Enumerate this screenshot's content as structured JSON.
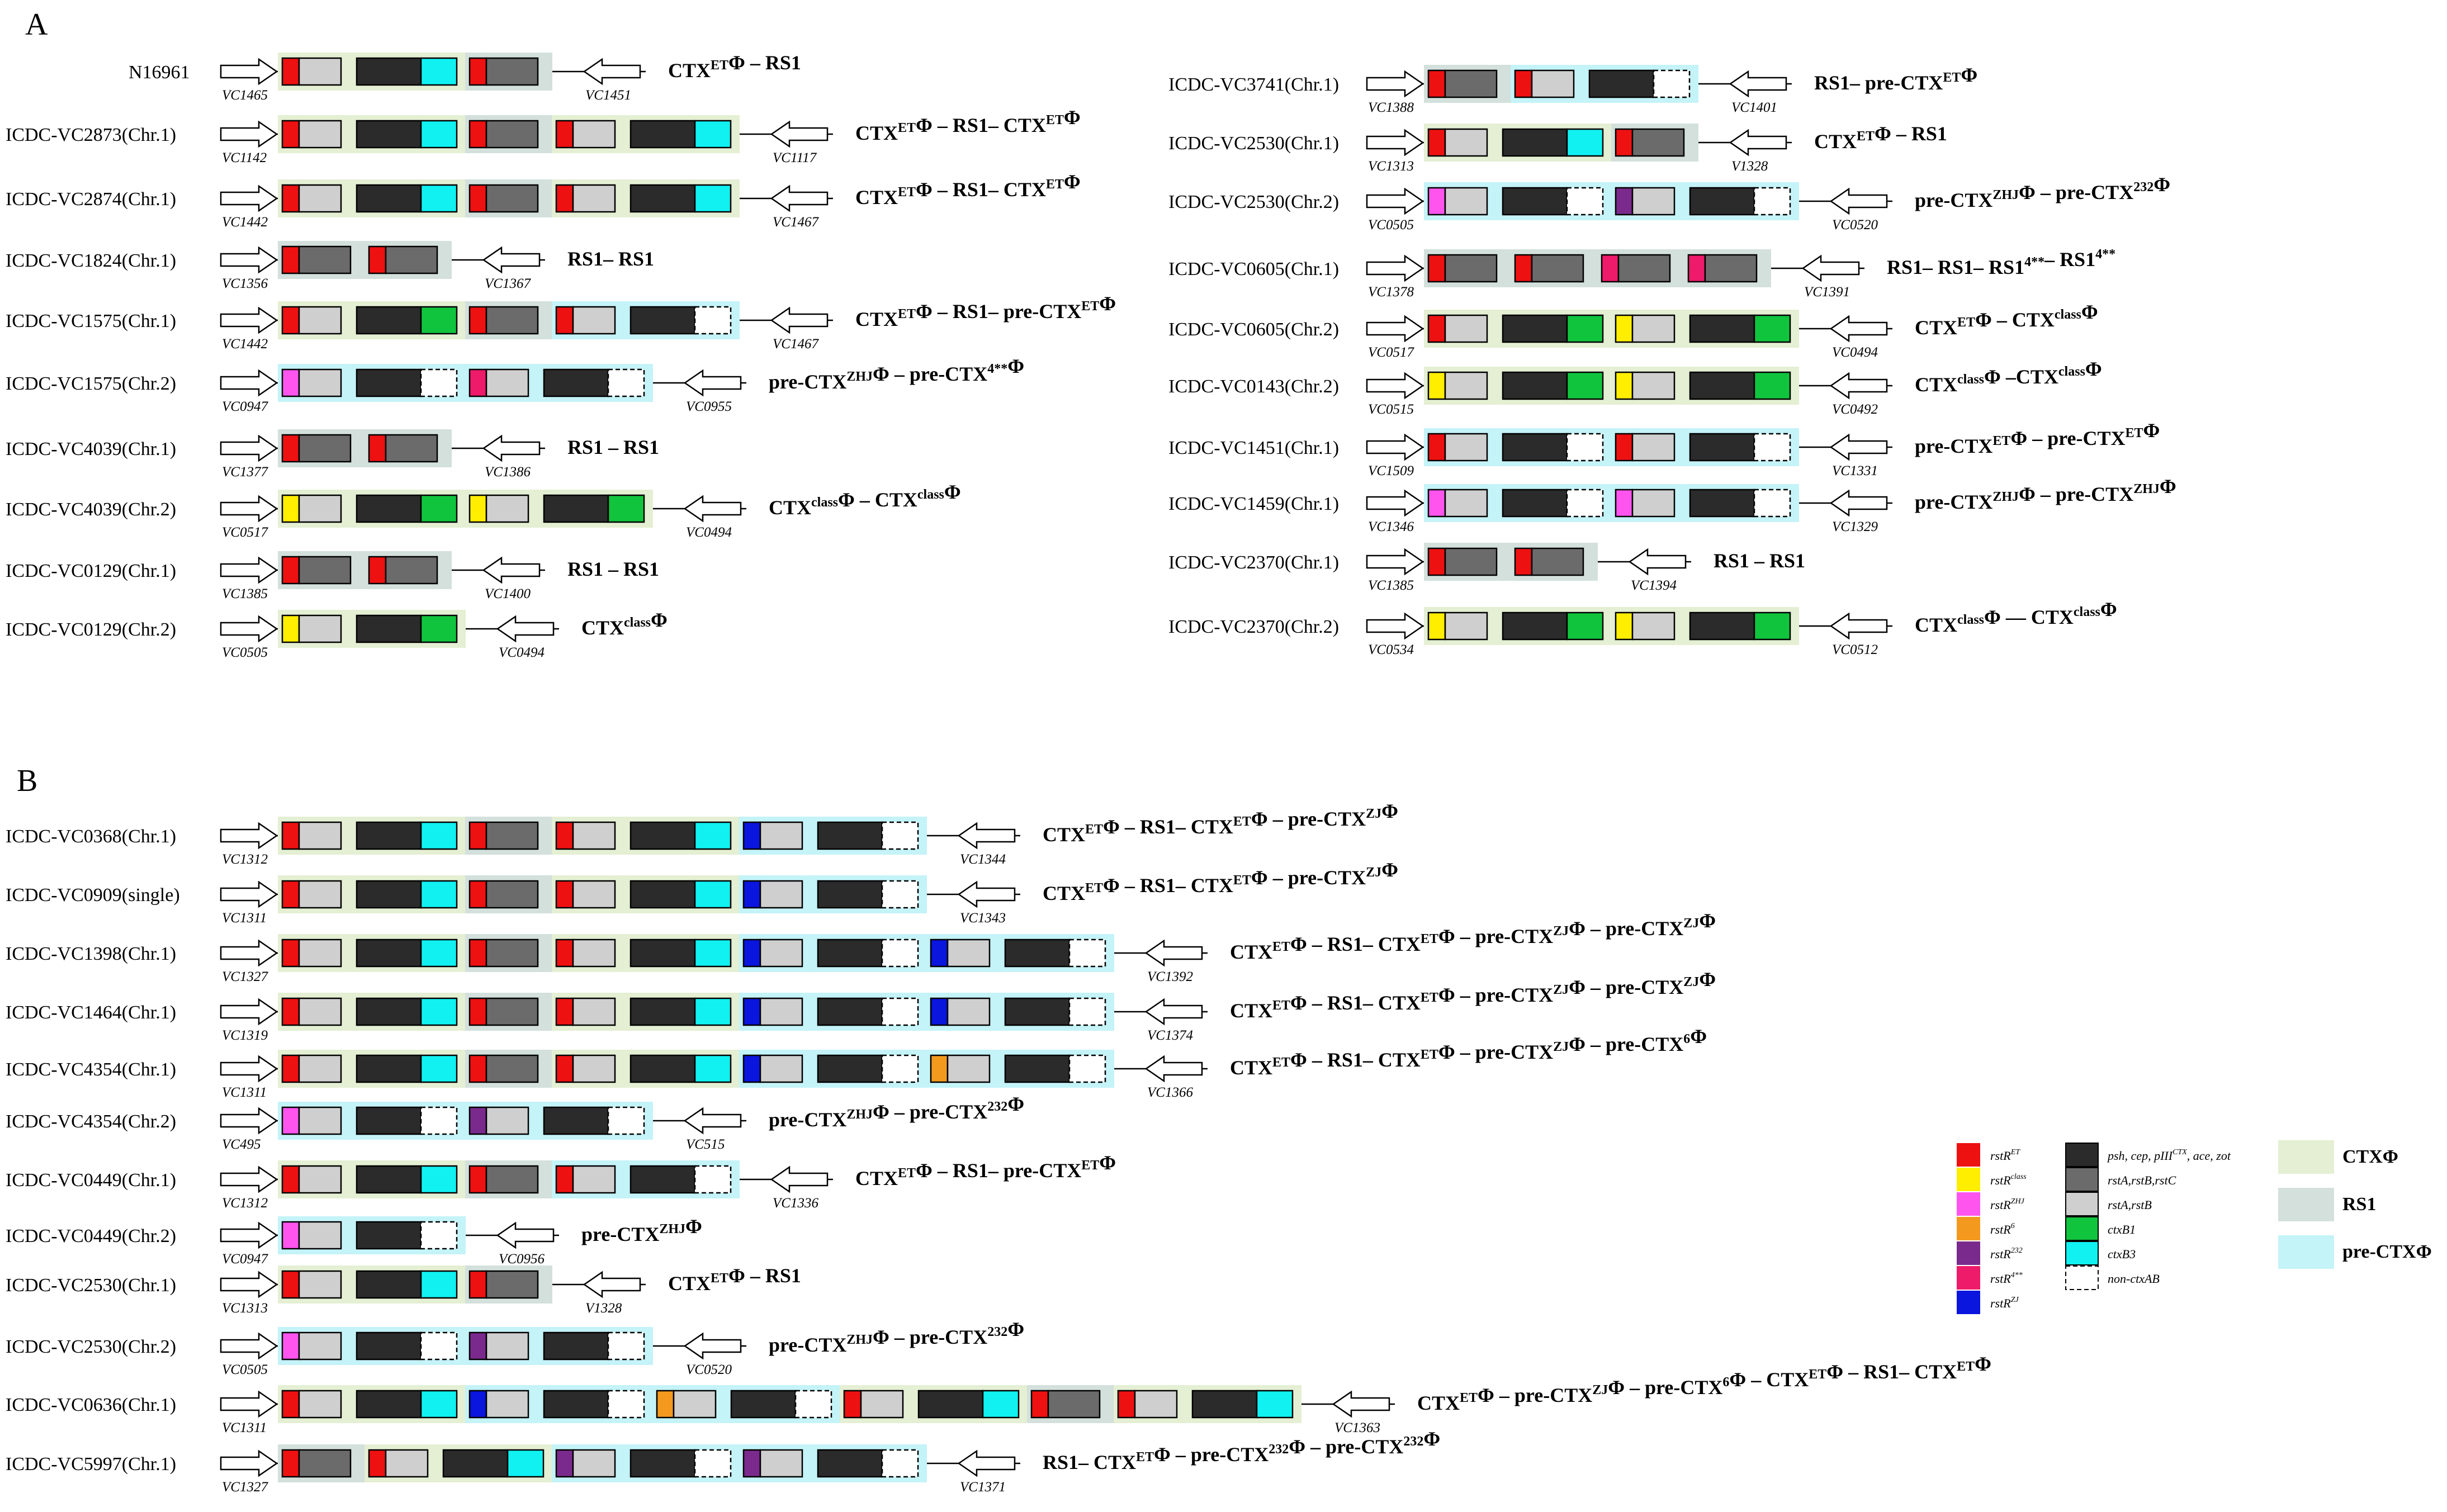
{
  "panels": [
    {
      "letter": "A",
      "rows": [
        {
          "strain": "N16961",
          "left": "VC1465",
          "right": "VC1451",
          "units": [
            "ET:EG:RS"
          ],
          "formula": [
            [
              "CTX",
              ""
            ],
            [
              "ET",
              "sup"
            ],
            [
              "Φ – RS1",
              ""
            ]
          ]
        },
        {
          "strain": "ICDC-VC2873(Chr.1)",
          "left": "VC1142",
          "right": "VC1117",
          "formula": [
            [
              "CTX",
              ""
            ],
            [
              "ET",
              "sup"
            ],
            [
              "Φ – RS1– CTX",
              ""
            ],
            [
              "ET",
              "sup"
            ],
            [
              "Φ",
              ""
            ]
          ]
        },
        {
          "strain": "ICDC-VC2874(Chr.1)",
          "left": "VC1442",
          "right": "VC1467",
          "formula": [
            [
              "CTX",
              ""
            ],
            [
              "ET",
              "sup"
            ],
            [
              "Φ – RS1– CTX",
              ""
            ],
            [
              "ET",
              "sup"
            ],
            [
              "Φ",
              ""
            ]
          ]
        },
        {
          "strain": "ICDC-VC1824(Chr.1)",
          "left": "VC1356",
          "right": "VC1367",
          "formula": [
            [
              "RS1– RS1",
              ""
            ]
          ]
        },
        {
          "strain": "ICDC-VC1575(Chr.1)",
          "left": "VC1442",
          "right": "VC1467",
          "formula": [
            [
              "CTX",
              ""
            ],
            [
              "ET",
              "sup"
            ],
            [
              "Φ – RS1– pre-CTX",
              ""
            ],
            [
              "ET",
              "sup"
            ],
            [
              "Φ",
              ""
            ]
          ]
        },
        {
          "strain": "ICDC-VC1575(Chr.2)",
          "left": "VC0947",
          "right": "VC0955",
          "formula": [
            [
              "pre-CTX",
              ""
            ],
            [
              "ZHJ",
              "sup"
            ],
            [
              "Φ – pre-CTX",
              ""
            ],
            [
              "4**",
              "sup"
            ],
            [
              "Φ",
              ""
            ]
          ]
        },
        {
          "strain": "ICDC-VC4039(Chr.1)",
          "left": "VC1377",
          "right": "VC1386",
          "formula": [
            [
              "RS1 – RS1",
              ""
            ]
          ]
        },
        {
          "strain": "ICDC-VC4039(Chr.2)",
          "left": "VC0517",
          "right": "VC0494",
          "formula": [
            [
              "CTX",
              ""
            ],
            [
              "class",
              "sup"
            ],
            [
              "Φ – CTX",
              ""
            ],
            [
              "class",
              "sup"
            ],
            [
              "Φ",
              ""
            ]
          ]
        },
        {
          "strain": "ICDC-VC0129(Chr.1)",
          "left": "VC1385",
          "right": "VC1400",
          "formula": [
            [
              "RS1 – RS1",
              ""
            ]
          ]
        },
        {
          "strain": "ICDC-VC0129(Chr.2)",
          "left": "VC0505",
          "right": "VC0494",
          "formula": [
            [
              "CTX",
              ""
            ],
            [
              "class",
              "sup"
            ],
            [
              "Φ",
              ""
            ]
          ]
        },
        {
          "strain": "ICDC-VC3741(Chr.1)",
          "left": "VC1388",
          "right": "VC1401",
          "formula": [
            [
              "RS1– pre-CTX",
              ""
            ],
            [
              "ET",
              "sup"
            ],
            [
              "Φ",
              ""
            ]
          ]
        },
        {
          "strain": "ICDC-VC2530(Chr.1)",
          "left": "VC1313",
          "right": "V1328",
          "formula": [
            [
              "CTX",
              ""
            ],
            [
              "ET",
              "sup"
            ],
            [
              "Φ – RS1",
              ""
            ]
          ]
        },
        {
          "strain": "ICDC-VC2530(Chr.2)",
          "left": "VC0505",
          "right": "VC0520",
          "formula": [
            [
              "pre-CTX",
              ""
            ],
            [
              "ZHJ",
              "sup"
            ],
            [
              "Φ – pre-CTX",
              ""
            ],
            [
              "232",
              "sup"
            ],
            [
              "Φ",
              ""
            ]
          ]
        },
        {
          "strain": "ICDC-VC0605(Chr.1)",
          "left": "VC1378",
          "right": "VC1391",
          "formula": [
            [
              "RS1– RS1– RS1",
              ""
            ],
            [
              "4**",
              "sup"
            ],
            [
              "– RS1",
              ""
            ],
            [
              "4**",
              "sup"
            ]
          ]
        },
        {
          "strain": "ICDC-VC0605(Chr.2)",
          "left": "VC0517",
          "right": "VC0494",
          "formula": [
            [
              "CTX",
              ""
            ],
            [
              "ET",
              "sup"
            ],
            [
              "Φ – CTX",
              ""
            ],
            [
              "class",
              "sup"
            ],
            [
              "Φ",
              ""
            ]
          ]
        },
        {
          "strain": "ICDC-VC0143(Chr.2)",
          "left": "VC0515",
          "right": "VC0492",
          "formula": [
            [
              "CTX",
              ""
            ],
            [
              "class",
              "sup"
            ],
            [
              "Φ –CTX",
              ""
            ],
            [
              "class",
              "sup"
            ],
            [
              "Φ",
              ""
            ]
          ]
        },
        {
          "strain": "ICDC-VC1451(Chr.1)",
          "left": "VC1509",
          "right": "VC1331",
          "formula": [
            [
              "pre-CTX",
              ""
            ],
            [
              "ET",
              "sup"
            ],
            [
              "Φ – pre-CTX",
              ""
            ],
            [
              "ET",
              "sup"
            ],
            [
              "Φ",
              ""
            ]
          ]
        },
        {
          "strain": "ICDC-VC1459(Chr.1)",
          "left": "VC1346",
          "right": "VC1329",
          "formula": [
            [
              "pre-CTX",
              ""
            ],
            [
              "ZHJ",
              "sup"
            ],
            [
              "Φ – pre-CTX",
              ""
            ],
            [
              "ZHJ",
              "sup"
            ],
            [
              "Φ",
              ""
            ]
          ]
        },
        {
          "strain": "ICDC-VC2370(Chr.1)",
          "left": "VC1385",
          "right": "VC1394",
          "formula": [
            [
              "RS1 – RS1",
              ""
            ]
          ]
        },
        {
          "strain": "ICDC-VC2370(Chr.2)",
          "left": "VC0534",
          "right": "VC0512",
          "formula": [
            [
              "CTX",
              ""
            ],
            [
              "class",
              "sup"
            ],
            [
              "Φ — CTX",
              ""
            ],
            [
              "class",
              "sup"
            ],
            [
              "Φ",
              ""
            ]
          ]
        }
      ]
    },
    {
      "letter": "B",
      "rows": [
        {
          "strain": "ICDC-VC0368(Chr.1)",
          "left": "VC1312",
          "right": "VC1344",
          "formula": [
            [
              "CTX",
              ""
            ],
            [
              "ET",
              "sup"
            ],
            [
              "Φ – RS1– CTX",
              ""
            ],
            [
              "ET",
              "sup"
            ],
            [
              "Φ – pre-CTX",
              ""
            ],
            [
              "ZJ",
              "sup"
            ],
            [
              "Φ",
              ""
            ]
          ]
        },
        {
          "strain": "ICDC-VC0909(single)",
          "left": "VC1311",
          "right": "VC1343",
          "formula": [
            [
              "CTX",
              ""
            ],
            [
              "ET",
              "sup"
            ],
            [
              "Φ – RS1– CTX",
              ""
            ],
            [
              "ET",
              "sup"
            ],
            [
              "Φ – pre-CTX",
              ""
            ],
            [
              "ZJ",
              "sup"
            ],
            [
              "Φ",
              ""
            ]
          ]
        },
        {
          "strain": "ICDC-VC1398(Chr.1)",
          "left": "VC1327",
          "right": "VC1392",
          "formula": [
            [
              "CTX",
              ""
            ],
            [
              "ET",
              "sup"
            ],
            [
              "Φ – RS1– CTX",
              ""
            ],
            [
              "ET",
              "sup"
            ],
            [
              "Φ – pre-CTX",
              ""
            ],
            [
              "ZJ",
              "sup"
            ],
            [
              "Φ – pre-CTX",
              ""
            ],
            [
              "ZJ",
              "sup"
            ],
            [
              "Φ",
              ""
            ]
          ]
        },
        {
          "strain": "ICDC-VC1464(Chr.1)",
          "left": "VC1319",
          "right": "VC1374",
          "formula": [
            [
              "CTX",
              ""
            ],
            [
              "ET",
              "sup"
            ],
            [
              "Φ – RS1– CTX",
              ""
            ],
            [
              "ET",
              "sup"
            ],
            [
              "Φ – pre-CTX",
              ""
            ],
            [
              "ZJ",
              "sup"
            ],
            [
              "Φ – pre-CTX",
              ""
            ],
            [
              "ZJ",
              "sup"
            ],
            [
              "Φ",
              ""
            ]
          ]
        },
        {
          "strain": "ICDC-VC4354(Chr.1)",
          "left": "VC1311",
          "right": "VC1366",
          "formula": [
            [
              "CTX",
              ""
            ],
            [
              "ET",
              "sup"
            ],
            [
              "Φ – RS1– CTX",
              ""
            ],
            [
              "ET",
              "sup"
            ],
            [
              "Φ – pre-CTX",
              ""
            ],
            [
              "ZJ",
              "sup"
            ],
            [
              "Φ – pre-CTX",
              ""
            ],
            [
              "6",
              "sup"
            ],
            [
              "Φ",
              ""
            ]
          ]
        },
        {
          "strain": "ICDC-VC4354(Chr.2)",
          "left": "VC495",
          "right": "VC515",
          "formula": [
            [
              "pre-CTX",
              ""
            ],
            [
              "ZHJ",
              "sup"
            ],
            [
              "Φ – pre-CTX",
              ""
            ],
            [
              "232",
              "sup"
            ],
            [
              "Φ",
              ""
            ]
          ]
        },
        {
          "strain": "ICDC-VC0449(Chr.1)",
          "left": "VC1312",
          "right": "VC1336",
          "formula": [
            [
              "CTX",
              ""
            ],
            [
              "ET",
              "sup"
            ],
            [
              "Φ – RS1– pre-CTX",
              ""
            ],
            [
              "ET",
              "sup"
            ],
            [
              "Φ",
              ""
            ]
          ]
        },
        {
          "strain": "ICDC-VC0449(Chr.2)",
          "left": "VC0947",
          "right": "VC0956",
          "formula": [
            [
              "pre-CTX",
              ""
            ],
            [
              "ZHJ",
              "sup"
            ],
            [
              "Φ",
              ""
            ]
          ]
        },
        {
          "strain": "ICDC-VC2530(Chr.1)",
          "left": "VC1313",
          "right": "V1328",
          "formula": [
            [
              "CTX",
              ""
            ],
            [
              "ET",
              "sup"
            ],
            [
              "Φ – RS1",
              ""
            ]
          ]
        },
        {
          "strain": "ICDC-VC2530(Chr.2)",
          "left": "VC0505",
          "right": "VC0520",
          "formula": [
            [
              "pre-CTX",
              ""
            ],
            [
              "ZHJ",
              "sup"
            ],
            [
              "Φ – pre-CTX",
              ""
            ],
            [
              "232",
              "sup"
            ],
            [
              "Φ",
              ""
            ]
          ]
        },
        {
          "strain": "ICDC-VC0636(Chr.1)",
          "left": "VC1311",
          "right": "VC1363",
          "formula": [
            [
              "CTX",
              ""
            ],
            [
              "ET",
              "sup"
            ],
            [
              "Φ – pre-CTX",
              ""
            ],
            [
              "ZJ",
              "sup"
            ],
            [
              "Φ – pre-CTX",
              ""
            ],
            [
              "6",
              "sup"
            ],
            [
              "Φ – CTX",
              ""
            ],
            [
              "ET",
              "sup"
            ],
            [
              "Φ – RS1– CTX",
              ""
            ],
            [
              "ET",
              "sup"
            ],
            [
              "Φ",
              ""
            ]
          ]
        },
        {
          "strain": "ICDC-VC5997(Chr.1)",
          "left": "VC1327",
          "right": "VC1371",
          "formula": [
            [
              "RS1– CTX",
              ""
            ],
            [
              "ET",
              "sup"
            ],
            [
              "Φ – pre-CTX",
              ""
            ],
            [
              "232",
              "sup"
            ],
            [
              "Φ – pre-CTX",
              ""
            ],
            [
              "232",
              "sup"
            ],
            [
              "Φ",
              ""
            ]
          ]
        }
      ]
    }
  ],
  "legend": {
    "rstR": [
      {
        "label": "rstR",
        "sup": "ET",
        "color": "#ee1111"
      },
      {
        "label": "rstR",
        "sup": "class",
        "color": "#ffee00"
      },
      {
        "label": "rstR",
        "sup": "ZHJ",
        "color": "#ff55ee"
      },
      {
        "label": "rstR",
        "sup": "6",
        "color": "#f39a1e"
      },
      {
        "label": "rstR",
        "sup": "232",
        "color": "#7a2a8c"
      },
      {
        "label": "rstR",
        "sup": "4**",
        "color": "#ee1a6a"
      },
      {
        "label": "rstR",
        "sup": "ZJ",
        "color": "#0a16dd"
      }
    ],
    "genes": [
      {
        "label": "psh, cep, pIII",
        "sup": "CTX",
        "tail": ", ace, zot",
        "color": "#2b2b2b"
      },
      {
        "label": "rstA,rstB,rstC",
        "sup": "",
        "tail": "",
        "color": "#6b6b6b"
      },
      {
        "label": "rstA,rstB",
        "sup": "",
        "tail": "",
        "color": "#cfcfcf"
      },
      {
        "label": "ctxB1",
        "sup": "",
        "tail": "",
        "color": "#11c43e"
      },
      {
        "label": "ctxB3",
        "sup": "",
        "tail": "",
        "color": "#11f1f1"
      },
      {
        "label": "non-ctxAB",
        "sup": "",
        "tail": "",
        "color": "#ffffff"
      }
    ],
    "backgrounds": [
      {
        "label": "CTXΦ",
        "color": "#e4efd3"
      },
      {
        "label": "RS1",
        "color": "#d3e0dc"
      },
      {
        "label": "pre-CTXΦ",
        "color": "#c4f3f8"
      }
    ]
  }
}
